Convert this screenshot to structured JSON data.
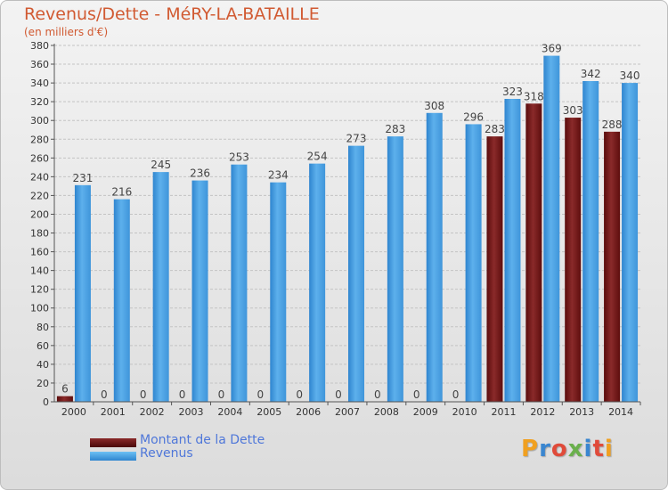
{
  "title": "Revenus/Dette - MéRY-LA-BATAILLE",
  "subtitle": "(en milliers d'€)",
  "logo_text": "Proxiti",
  "colors": {
    "dette": "#6b0f0f",
    "revenus": "#4a9ee2",
    "title": "#d15a32",
    "legend_text": "#4f77d9"
  },
  "chart_data": {
    "type": "bar",
    "categories": [
      "2000",
      "2001",
      "2002",
      "2003",
      "2004",
      "2005",
      "2006",
      "2007",
      "2008",
      "2009",
      "2010",
      "2011",
      "2012",
      "2013",
      "2014"
    ],
    "series": [
      {
        "name": "Montant de la Dette",
        "values": [
          6,
          0,
          0,
          0,
          0,
          0,
          0,
          0,
          0,
          0,
          0,
          283,
          318,
          303,
          288
        ]
      },
      {
        "name": "Revenus",
        "values": [
          231,
          216,
          245,
          236,
          253,
          234,
          254,
          273,
          283,
          308,
          296,
          323,
          369,
          342,
          340
        ]
      }
    ],
    "ylim": [
      0,
      380
    ],
    "yticks": [
      0,
      20,
      40,
      60,
      80,
      100,
      120,
      140,
      160,
      180,
      200,
      220,
      240,
      260,
      280,
      300,
      320,
      340,
      360,
      380
    ],
    "grid": true,
    "legend": "bottom-left"
  }
}
